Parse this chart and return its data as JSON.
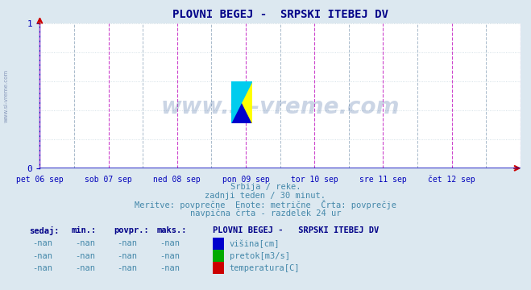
{
  "title": "PLOVNI BEGEJ -  SRPSKI ITEBEJ DV",
  "bg_color": "#dce8f0",
  "plot_bg_color": "#ffffff",
  "grid_color": "#c8d8e0",
  "axis_color": "#0000bb",
  "title_color": "#000088",
  "text_color": "#4488aa",
  "ylim": [
    0,
    1
  ],
  "yticks": [
    0,
    1
  ],
  "xlim": [
    0,
    336
  ],
  "x_day_labels": [
    "pet 06 sep",
    "sob 07 sep",
    "ned 08 sep",
    "pon 09 sep",
    "tor 10 sep",
    "sre 11 sep",
    "čet 12 sep"
  ],
  "x_day_positions": [
    0,
    48,
    96,
    144,
    192,
    240,
    288
  ],
  "vertical_lines_magenta": [
    0,
    48,
    96,
    144,
    192,
    240,
    288,
    336
  ],
  "vertical_lines_dashed_gray": [
    24,
    72,
    120,
    168,
    216,
    264,
    312
  ],
  "watermark": "www.si-vreme.com",
  "subtitle1": "Srbija / reke.",
  "subtitle2": "zadnji teden / 30 minut.",
  "subtitle3": "Meritve: povprečne  Enote: metrične  Črta: povprečje",
  "subtitle4": "navpična črta - razdelek 24 ur",
  "legend_title": "PLOVNI BEGEJ -   SRPSKI ITEBEJ DV",
  "legend_items": [
    {
      "label": "višina[cm]",
      "color": "#0000cc"
    },
    {
      "label": "pretok[m3/s]",
      "color": "#00aa00"
    },
    {
      "label": "temperatura[C]",
      "color": "#cc0000"
    }
  ],
  "table_headers": [
    "sedaj:",
    "min.:",
    "povpr.:",
    "maks.:"
  ],
  "table_rows": [
    [
      "-nan",
      "-nan",
      "-nan",
      "-nan"
    ],
    [
      "-nan",
      "-nan",
      "-nan",
      "-nan"
    ],
    [
      "-nan",
      "-nan",
      "-nan",
      "-nan"
    ]
  ]
}
